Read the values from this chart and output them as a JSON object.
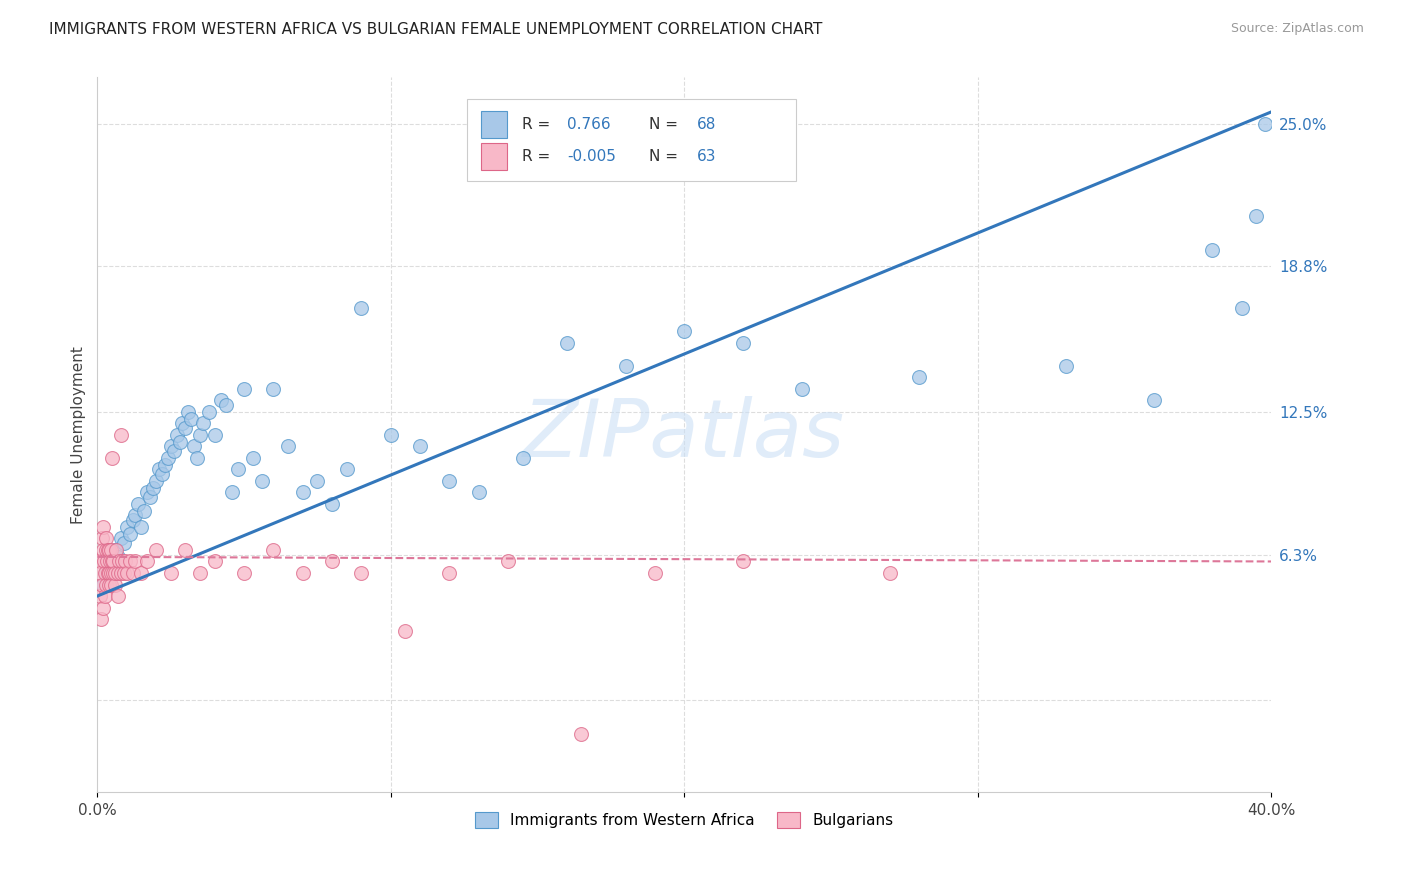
{
  "title": "IMMIGRANTS FROM WESTERN AFRICA VS BULGARIAN FEMALE UNEMPLOYMENT CORRELATION CHART",
  "source": "Source: ZipAtlas.com",
  "ylabel": "Female Unemployment",
  "xmin": 0.0,
  "xmax": 40.0,
  "ymin": -4.0,
  "ymax": 27.0,
  "ytick_vals": [
    0.0,
    6.3,
    12.5,
    18.8,
    25.0
  ],
  "ytick_labels": [
    "",
    "6.3%",
    "12.5%",
    "18.8%",
    "25.0%"
  ],
  "blue_r": "0.766",
  "blue_n": "68",
  "pink_r": "-0.005",
  "pink_n": "63",
  "blue_color": "#a8c8e8",
  "pink_color": "#f8b8c8",
  "blue_edge_color": "#5599cc",
  "pink_edge_color": "#dd6688",
  "blue_line_color": "#3377bb",
  "pink_line_color": "#dd7799",
  "legend_label_blue": "Immigrants from Western Africa",
  "legend_label_pink": "Bulgarians",
  "watermark": "ZIPatlas",
  "background_color": "#ffffff",
  "blue_scatter_x": [
    0.2,
    0.3,
    0.4,
    0.5,
    0.6,
    0.7,
    0.8,
    0.9,
    1.0,
    1.1,
    1.2,
    1.3,
    1.4,
    1.5,
    1.6,
    1.7,
    1.8,
    1.9,
    2.0,
    2.1,
    2.2,
    2.3,
    2.4,
    2.5,
    2.6,
    2.7,
    2.8,
    2.9,
    3.0,
    3.1,
    3.2,
    3.3,
    3.4,
    3.5,
    3.6,
    3.8,
    4.0,
    4.2,
    4.4,
    4.6,
    4.8,
    5.0,
    5.3,
    5.6,
    6.0,
    6.5,
    7.0,
    7.5,
    8.0,
    8.5,
    9.0,
    10.0,
    11.0,
    12.0,
    13.0,
    14.5,
    16.0,
    18.0,
    20.0,
    22.0,
    24.0,
    28.0,
    33.0,
    36.0,
    38.0,
    39.0,
    39.5,
    39.8
  ],
  "blue_scatter_y": [
    5.0,
    5.5,
    6.0,
    5.8,
    6.5,
    6.2,
    7.0,
    6.8,
    7.5,
    7.2,
    7.8,
    8.0,
    8.5,
    7.5,
    8.2,
    9.0,
    8.8,
    9.2,
    9.5,
    10.0,
    9.8,
    10.2,
    10.5,
    11.0,
    10.8,
    11.5,
    11.2,
    12.0,
    11.8,
    12.5,
    12.2,
    11.0,
    10.5,
    11.5,
    12.0,
    12.5,
    11.5,
    13.0,
    12.8,
    9.0,
    10.0,
    13.5,
    10.5,
    9.5,
    13.5,
    11.0,
    9.0,
    9.5,
    8.5,
    10.0,
    17.0,
    11.5,
    11.0,
    9.5,
    9.0,
    10.5,
    15.5,
    14.5,
    16.0,
    15.5,
    13.5,
    14.0,
    14.5,
    13.0,
    19.5,
    17.0,
    21.0,
    25.0
  ],
  "pink_scatter_x": [
    0.05,
    0.08,
    0.1,
    0.12,
    0.15,
    0.15,
    0.18,
    0.2,
    0.2,
    0.22,
    0.25,
    0.25,
    0.28,
    0.3,
    0.3,
    0.32,
    0.35,
    0.35,
    0.38,
    0.4,
    0.4,
    0.42,
    0.45,
    0.45,
    0.48,
    0.5,
    0.5,
    0.55,
    0.55,
    0.6,
    0.6,
    0.65,
    0.7,
    0.7,
    0.75,
    0.8,
    0.8,
    0.85,
    0.9,
    0.95,
    1.0,
    1.1,
    1.2,
    1.3,
    1.5,
    1.7,
    2.0,
    2.5,
    3.0,
    3.5,
    4.0,
    5.0,
    6.0,
    7.0,
    8.0,
    9.0,
    10.5,
    12.0,
    14.0,
    16.5,
    19.0,
    22.0,
    27.0
  ],
  "pink_scatter_y": [
    6.0,
    5.5,
    4.5,
    3.5,
    7.0,
    5.0,
    6.5,
    4.0,
    7.5,
    6.0,
    5.5,
    4.5,
    6.5,
    7.0,
    5.0,
    6.0,
    5.5,
    6.5,
    5.0,
    6.5,
    5.5,
    6.0,
    5.5,
    6.5,
    5.0,
    10.5,
    6.0,
    5.5,
    6.0,
    5.0,
    5.5,
    6.5,
    5.5,
    4.5,
    6.0,
    5.5,
    11.5,
    6.0,
    5.5,
    6.0,
    5.5,
    6.0,
    5.5,
    6.0,
    5.5,
    6.0,
    6.5,
    5.5,
    6.5,
    5.5,
    6.0,
    5.5,
    6.5,
    5.5,
    6.0,
    5.5,
    3.0,
    5.5,
    6.0,
    -1.5,
    5.5,
    6.0,
    5.5
  ]
}
